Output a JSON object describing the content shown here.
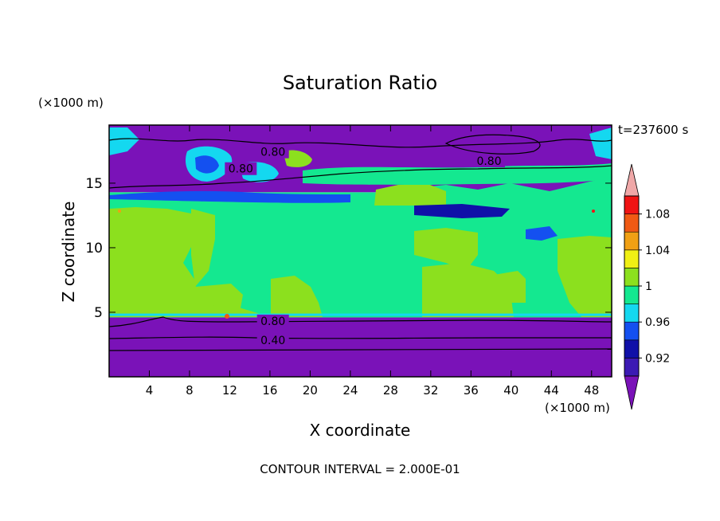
{
  "chart_data": {
    "type": "heatmap",
    "title": "Saturation Ratio",
    "xlabel": "X coordinate",
    "ylabel": "Z coordinate",
    "x_unit": "(×1000 m)",
    "y_unit": "(×1000 m)",
    "time_label": "t=237600 s",
    "footer": "CONTOUR INTERVAL = 2.000E-01",
    "xlim": [
      0,
      50
    ],
    "ylim": [
      0,
      19.5
    ],
    "x_ticks": [
      4,
      8,
      12,
      16,
      20,
      24,
      28,
      32,
      36,
      40,
      44,
      48
    ],
    "y_ticks": [
      5,
      10,
      15
    ],
    "x_tick_labels": [
      "4",
      "8",
      "12",
      "16",
      "20",
      "24",
      "28",
      "32",
      "36",
      "40",
      "44",
      "48"
    ],
    "y_tick_labels": [
      "5",
      "10",
      "15"
    ],
    "colorbar": {
      "levels": [
        0.9,
        0.92,
        0.94,
        0.96,
        0.98,
        1.0,
        1.02,
        1.04,
        1.06,
        1.08,
        1.1
      ],
      "colors": [
        "#7a12b8",
        "#3c1ab4",
        "#1010a8",
        "#1450f0",
        "#14d8f0",
        "#14e890",
        "#8ce01e",
        "#f0f014",
        "#f0a014",
        "#f05a14",
        "#f01414"
      ],
      "over_color": "#f0a8a8",
      "under_color": "#7a12b8",
      "labels": [
        {
          "value": 0.92,
          "text": "0.92"
        },
        {
          "value": 0.96,
          "text": "0.96"
        },
        {
          "value": 1.0,
          "text": "1"
        },
        {
          "value": 1.04,
          "text": "1.04"
        },
        {
          "value": 1.08,
          "text": "1.08"
        }
      ]
    },
    "regions": [
      {
        "name": "lower-dry-layer",
        "z_range": [
          0,
          4.6
        ],
        "value": 0.4,
        "color": "#7a12b8"
      },
      {
        "name": "saturated-layer",
        "z_range": [
          4.6,
          14.3
        ],
        "value": 0.99,
        "color": "#14e890"
      },
      {
        "name": "upper-dry-layer",
        "z_range": [
          14.3,
          19.5
        ],
        "value": 0.7,
        "color": "#7a12b8"
      }
    ],
    "contour_labels": [
      {
        "text": "0.80",
        "x": 16.3,
        "z": 17.3
      },
      {
        "text": "0.80",
        "x": 13.1,
        "z": 16.0
      },
      {
        "text": "0.80",
        "x": 37.8,
        "z": 16.6
      },
      {
        "text": "0.80",
        "x": 16.3,
        "z": 4.2
      },
      {
        "text": "0.40",
        "x": 16.3,
        "z": 2.7
      }
    ]
  }
}
